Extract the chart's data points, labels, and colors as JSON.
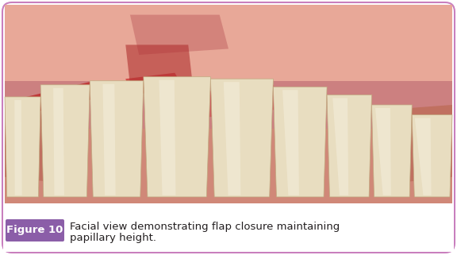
{
  "figure_label": "Figure 10",
  "caption_line1": "Facial view demonstrating flap closure maintaining",
  "caption_line2": "papillary height.",
  "label_bg_color": "#8B5EA8",
  "label_text_color": "#ffffff",
  "caption_text_color": "#231F20",
  "border_color": "#C97FBE",
  "outer_bg_color": "#ffffff",
  "fig_width": 5.76,
  "fig_height": 3.21,
  "dpi": 100,
  "caption_font_size": 9.5,
  "label_font_size": 9.5
}
